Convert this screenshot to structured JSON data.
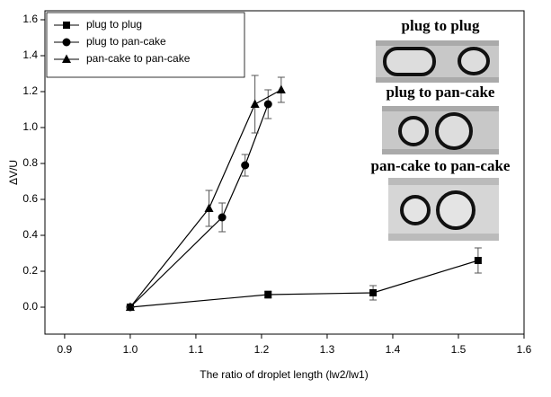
{
  "chart_data": {
    "type": "line",
    "xlabel": "The ratio of droplet length (lw2/lw1)",
    "ylabel": "ΔV/U",
    "xlim": [
      0.87,
      1.6
    ],
    "ylim": [
      -0.15,
      1.65
    ],
    "xticks": [
      0.9,
      {
        "value": 1,
        "label": "1.0"
      },
      1.1,
      1.2,
      1.3,
      1.4,
      1.5,
      1.6
    ],
    "yticks": [
      {
        "value": 0,
        "label": "0.0"
      },
      0.2,
      0.4,
      0.6,
      0.8,
      {
        "value": 1,
        "label": "1.0"
      },
      1.2,
      1.4,
      1.6
    ],
    "legend": "upper left",
    "series": [
      {
        "name": "plug to plug",
        "color": "#000000",
        "marker": "square",
        "x": [
          1.0,
          1.21,
          1.37,
          1.53
        ],
        "values": [
          0,
          0.07,
          0.08,
          0.26
        ],
        "errors": [
          0,
          0.02,
          0.04,
          0.07
        ]
      },
      {
        "name": "plug to pan-cake",
        "color": "#000000",
        "marker": "circle",
        "x": [
          1.0,
          1.14,
          1.175,
          1.21
        ],
        "values": [
          0,
          0.5,
          0.79,
          1.13
        ],
        "errors": [
          0,
          0.08,
          0.06,
          0.08
        ]
      },
      {
        "name": "pan-cake to pan-cake",
        "color": "#000000",
        "marker": "triangle",
        "x": [
          1.0,
          1.12,
          1.19,
          1.23
        ],
        "values": [
          0,
          0.55,
          1.13,
          1.21
        ],
        "errors": [
          0,
          0.1,
          0.16,
          0.07
        ]
      }
    ],
    "annotations": [
      "plug to plug",
      "plug to pan-cake",
      "pan-cake to pan-cake"
    ]
  }
}
